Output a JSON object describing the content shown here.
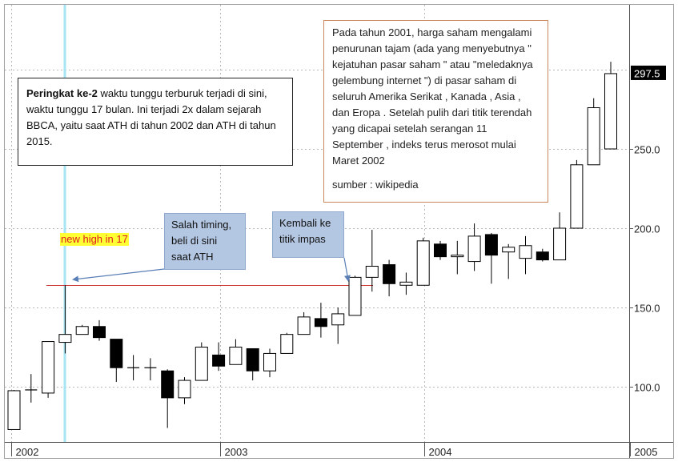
{
  "annotations": {
    "rank_bold": "Peringkat ke-2",
    "rank_text": " waktu tunggu terburuk terjadi di sini, waktu tunggu 17 bulan. Ini terjadi 2x dalam sejarah BBCA, yaitu saat ATH di tahun 2002 dan ATH di tahun 2015.",
    "wiki_text": "Pada tahun 2001, harga saham mengalami penurunan tajam (ada yang menyebutnya \" kejatuhan pasar saham \" atau \"meledaknya gelembung internet \") di pasar saham di seluruh Amerika Serikat , Kanada , Asia , dan Eropa . Setelah pulih dari titik terendah yang dicapai setelah serangan 11 September , indeks terus merosot mulai Maret 2002",
    "wiki_source": "sumber : wikipedia",
    "salah_timing": "Salah timing, beli di sini saat ATH",
    "kembali": "Kembali ke titik impas",
    "new_high": "new high in 17"
  },
  "colors": {
    "up_fill": "#ffffff",
    "down_fill": "#000000",
    "candle_edge": "#000000",
    "ath_line": "#cc3333",
    "highlight_line": "#a8e4f4",
    "arrow": "#5a7fb6",
    "grid": "#b8b8b8",
    "last_price_bg": "#000000"
  },
  "chart_data": {
    "type": "candlestick",
    "period": "monthly",
    "x_tick_labels": [
      "2002",
      "2003",
      "2004",
      "2005"
    ],
    "y_tick_labels": [
      "100.0",
      "150.0",
      "200.0",
      "250.0"
    ],
    "ylim": [
      73,
      305
    ],
    "last_price_label": "297.5",
    "ath_level": 164,
    "grid": true,
    "candles": [
      {
        "o": 73,
        "h": 98,
        "l": 73,
        "c": 97.5
      },
      {
        "o": 98,
        "h": 108,
        "l": 90,
        "c": 98
      },
      {
        "o": 96,
        "h": 128,
        "l": 93,
        "c": 128.5
      },
      {
        "o": 128,
        "h": 164,
        "l": 121,
        "c": 133
      },
      {
        "o": 133,
        "h": 139,
        "l": 133,
        "c": 138
      },
      {
        "o": 138,
        "h": 142,
        "l": 129,
        "c": 131
      },
      {
        "o": 130,
        "h": 130,
        "l": 103,
        "c": 112
      },
      {
        "o": 112,
        "h": 120,
        "l": 104,
        "c": 112
      },
      {
        "o": 112,
        "h": 118,
        "l": 104,
        "c": 112
      },
      {
        "o": 110,
        "h": 111,
        "l": 74,
        "c": 93
      },
      {
        "o": 93,
        "h": 106,
        "l": 89,
        "c": 104
      },
      {
        "o": 104,
        "h": 128,
        "l": 104,
        "c": 125
      },
      {
        "o": 120,
        "h": 128,
        "l": 110,
        "c": 113
      },
      {
        "o": 114,
        "h": 130,
        "l": 114,
        "c": 125
      },
      {
        "o": 124,
        "h": 124,
        "l": 104,
        "c": 110
      },
      {
        "o": 110,
        "h": 124,
        "l": 106,
        "c": 121
      },
      {
        "o": 121,
        "h": 134,
        "l": 121,
        "c": 133
      },
      {
        "o": 133,
        "h": 147,
        "l": 133,
        "c": 144
      },
      {
        "o": 143,
        "h": 153,
        "l": 131,
        "c": 138
      },
      {
        "o": 139,
        "h": 150,
        "l": 127,
        "c": 146
      },
      {
        "o": 145,
        "h": 170,
        "l": 145,
        "c": 169
      },
      {
        "o": 169,
        "h": 199,
        "l": 160,
        "c": 176
      },
      {
        "o": 177,
        "h": 180,
        "l": 157,
        "c": 165
      },
      {
        "o": 164,
        "h": 172,
        "l": 158,
        "c": 166
      },
      {
        "o": 164,
        "h": 194,
        "l": 164,
        "c": 192
      },
      {
        "o": 190,
        "h": 192,
        "l": 180,
        "c": 182
      },
      {
        "o": 182,
        "h": 192,
        "l": 171,
        "c": 183
      },
      {
        "o": 179,
        "h": 203,
        "l": 173,
        "c": 195
      },
      {
        "o": 196,
        "h": 197,
        "l": 165,
        "c": 183
      },
      {
        "o": 185,
        "h": 190,
        "l": 168,
        "c": 188
      },
      {
        "o": 181,
        "h": 195,
        "l": 171,
        "c": 189
      },
      {
        "o": 185,
        "h": 187,
        "l": 179,
        "c": 180
      },
      {
        "o": 180,
        "h": 210,
        "l": 180,
        "c": 200
      },
      {
        "o": 200,
        "h": 243,
        "l": 200,
        "c": 240
      },
      {
        "o": 240,
        "h": 282,
        "l": 240,
        "c": 276
      },
      {
        "o": 250,
        "h": 305,
        "l": 250,
        "c": 297.5
      }
    ]
  }
}
